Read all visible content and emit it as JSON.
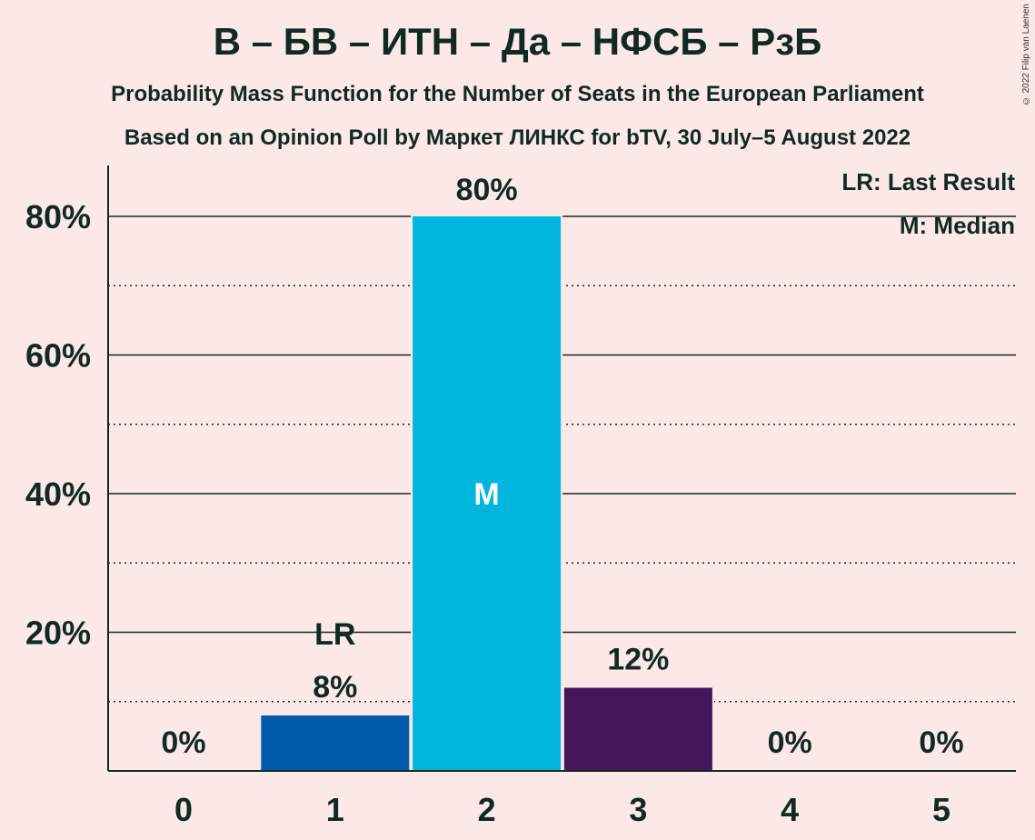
{
  "title": "В – БВ – ИТН – Да – НФСБ – РзБ",
  "subtitle_line1": "Probability Mass Function for the Number of Seats in the European Parliament",
  "subtitle_line2": "Based on an Opinion Poll by Маркет ЛИНКС for bTV, 30 July–5 August 2022",
  "copyright": "© 2022 Filip van Laenen",
  "legend": {
    "last_result": "LR: Last Result",
    "median": "M: Median"
  },
  "chart_data": {
    "type": "bar",
    "categories": [
      "0",
      "1",
      "2",
      "3",
      "4",
      "5"
    ],
    "values": [
      0,
      8,
      80,
      12,
      0,
      0
    ],
    "value_labels": [
      "0%",
      "8%",
      "80%",
      "12%",
      "0%",
      "0%"
    ],
    "bar_colors": [
      "#005BAC",
      "#005BAC",
      "#00B6DE",
      "#46165A",
      "#46165A",
      "#46165A"
    ],
    "annotations": [
      {
        "category": "1",
        "text": "LR",
        "meaning": "last result"
      },
      {
        "category": "2",
        "text": "M",
        "meaning": "median"
      }
    ],
    "y_ticks": [
      "20%",
      "40%",
      "60%",
      "80%"
    ],
    "y_tick_values": [
      20,
      40,
      60,
      80
    ],
    "ylim": [
      0,
      87
    ],
    "minor_gridlines": [
      10,
      30,
      50,
      70
    ],
    "legend_position": "top-right"
  }
}
